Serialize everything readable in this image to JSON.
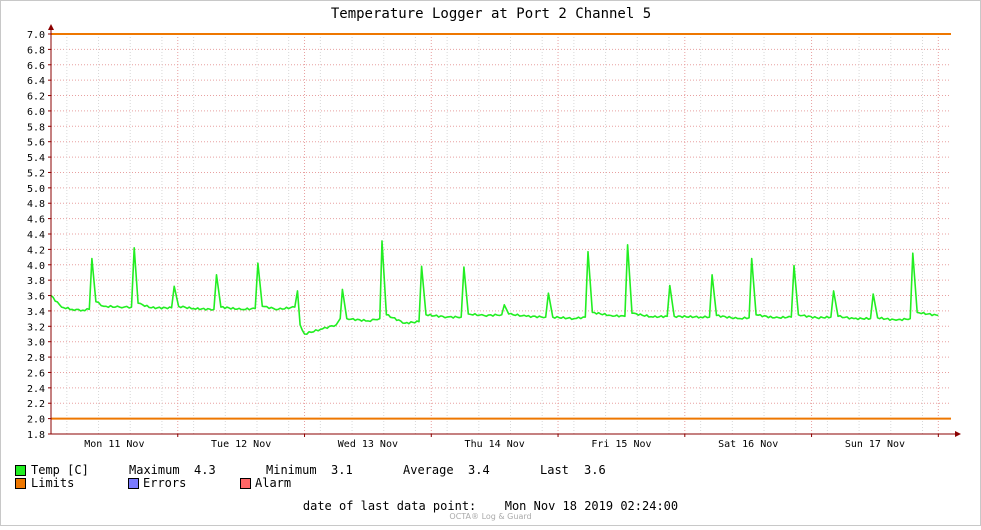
{
  "colors": {
    "temp": "#22ee22",
    "limits": "#ee7700",
    "errors": "#7b7bff",
    "alarm": "#ff6666",
    "grid_major": "#e8a0a0",
    "grid_minor": "#d8d8d8",
    "axis": "#8b0000"
  },
  "chart_data": {
    "type": "line",
    "title": "Temperature Logger at Port 2 Channel 5",
    "xlabel": "",
    "ylabel": "",
    "ylim": [
      1.8,
      7.0
    ],
    "y_ticks": [
      "7.0",
      "6.8",
      "6.6",
      "6.4",
      "6.2",
      "6.0",
      "5.8",
      "5.6",
      "5.4",
      "5.2",
      "5.0",
      "4.8",
      "4.6",
      "4.4",
      "4.2",
      "4.0",
      "3.8",
      "3.6",
      "3.4",
      "3.2",
      "3.0",
      "2.8",
      "2.6",
      "2.4",
      "2.2",
      "2.0",
      "1.8"
    ],
    "x_range_days": [
      "Mon 11 Nov 00:00",
      "Mon 18 Nov 02:24"
    ],
    "x_labels": [
      "Mon 11 Nov",
      "Tue 12 Nov",
      "Wed 13 Nov",
      "Thu 14 Nov",
      "Fri 15 Nov",
      "Sat 16 Nov",
      "Sun 17 Nov"
    ],
    "grid": true,
    "series": [
      {
        "name": "Temp [C]",
        "type": "line",
        "points": [
          [
            "Mon 11 Nov 00:00",
            3.6
          ],
          [
            "Mon 11 Nov 02:00",
            3.45
          ],
          [
            "Mon 11 Nov 04:00",
            3.42
          ],
          [
            "Mon 11 Nov 06:00",
            3.41
          ],
          [
            "Mon 11 Nov 07:15",
            3.42
          ],
          [
            "Mon 11 Nov 07:45",
            4.08
          ],
          [
            "Mon 11 Nov 08:30",
            3.52
          ],
          [
            "Mon 11 Nov 10:00",
            3.46
          ],
          [
            "Mon 11 Nov 13:00",
            3.45
          ],
          [
            "Mon 11 Nov 15:15",
            3.45
          ],
          [
            "Mon 11 Nov 15:45",
            4.22
          ],
          [
            "Mon 11 Nov 16:30",
            3.5
          ],
          [
            "Mon 11 Nov 19:00",
            3.44
          ],
          [
            "Mon 11 Nov 22:50",
            3.44
          ],
          [
            "Mon 11 Nov 23:20",
            3.72
          ],
          [
            "Tue 12 Nov 00:10",
            3.46
          ],
          [
            "Tue 12 Nov 03:00",
            3.43
          ],
          [
            "Tue 12 Nov 06:50",
            3.42
          ],
          [
            "Tue 12 Nov 07:20",
            3.87
          ],
          [
            "Tue 12 Nov 08:10",
            3.45
          ],
          [
            "Tue 12 Nov 12:00",
            3.42
          ],
          [
            "Tue 12 Nov 14:40",
            3.43
          ],
          [
            "Tue 12 Nov 15:10",
            4.02
          ],
          [
            "Tue 12 Nov 16:00",
            3.46
          ],
          [
            "Tue 12 Nov 19:00",
            3.42
          ],
          [
            "Tue 12 Nov 22:10",
            3.45
          ],
          [
            "Tue 12 Nov 22:40",
            3.66
          ],
          [
            "Tue 12 Nov 23:10",
            3.22
          ],
          [
            "Wed 13 Nov 00:00",
            3.1
          ],
          [
            "Wed 13 Nov 03:00",
            3.16
          ],
          [
            "Wed 13 Nov 06:00",
            3.22
          ],
          [
            "Wed 13 Nov 06:45",
            3.3
          ],
          [
            "Wed 13 Nov 07:10",
            3.68
          ],
          [
            "Wed 13 Nov 08:00",
            3.3
          ],
          [
            "Wed 13 Nov 12:00",
            3.27
          ],
          [
            "Wed 13 Nov 14:15",
            3.3
          ],
          [
            "Wed 13 Nov 14:40",
            4.31
          ],
          [
            "Wed 13 Nov 15:30",
            3.35
          ],
          [
            "Wed 13 Nov 19:00",
            3.24
          ],
          [
            "Wed 13 Nov 21:40",
            3.26
          ],
          [
            "Wed 13 Nov 22:10",
            3.98
          ],
          [
            "Wed 13 Nov 23:00",
            3.35
          ],
          [
            "Thu 14 Nov 03:00",
            3.32
          ],
          [
            "Thu 14 Nov 05:40",
            3.32
          ],
          [
            "Thu 14 Nov 06:10",
            3.97
          ],
          [
            "Thu 14 Nov 07:00",
            3.36
          ],
          [
            "Thu 14 Nov 10:00",
            3.34
          ],
          [
            "Thu 14 Nov 13:20",
            3.35
          ],
          [
            "Thu 14 Nov 13:50",
            3.48
          ],
          [
            "Thu 14 Nov 14:40",
            3.36
          ],
          [
            "Thu 14 Nov 18:00",
            3.33
          ],
          [
            "Thu 14 Nov 21:40",
            3.32
          ],
          [
            "Thu 14 Nov 22:10",
            3.63
          ],
          [
            "Thu 14 Nov 23:00",
            3.32
          ],
          [
            "Fri 15 Nov 03:00",
            3.3
          ],
          [
            "Fri 15 Nov 05:10",
            3.32
          ],
          [
            "Fri 15 Nov 05:40",
            4.17
          ],
          [
            "Fri 15 Nov 06:30",
            3.38
          ],
          [
            "Fri 15 Nov 10:00",
            3.34
          ],
          [
            "Fri 15 Nov 12:40",
            3.33
          ],
          [
            "Fri 15 Nov 13:10",
            4.26
          ],
          [
            "Fri 15 Nov 14:00",
            3.37
          ],
          [
            "Fri 15 Nov 18:00",
            3.32
          ],
          [
            "Fri 15 Nov 20:40",
            3.33
          ],
          [
            "Fri 15 Nov 21:10",
            3.73
          ],
          [
            "Fri 15 Nov 22:00",
            3.33
          ],
          [
            "Sat 16 Nov 03:00",
            3.32
          ],
          [
            "Sat 16 Nov 04:40",
            3.32
          ],
          [
            "Sat 16 Nov 05:10",
            3.87
          ],
          [
            "Sat 16 Nov 06:00",
            3.34
          ],
          [
            "Sat 16 Nov 10:00",
            3.3
          ],
          [
            "Sat 16 Nov 12:10",
            3.31
          ],
          [
            "Sat 16 Nov 12:40",
            4.08
          ],
          [
            "Sat 16 Nov 13:30",
            3.35
          ],
          [
            "Sat 16 Nov 17:00",
            3.31
          ],
          [
            "Sat 16 Nov 20:10",
            3.32
          ],
          [
            "Sat 16 Nov 20:40",
            3.99
          ],
          [
            "Sat 16 Nov 21:30",
            3.35
          ],
          [
            "Sun 17 Nov 01:00",
            3.31
          ],
          [
            "Sun 17 Nov 03:40",
            3.32
          ],
          [
            "Sun 17 Nov 04:10",
            3.66
          ],
          [
            "Sun 17 Nov 05:00",
            3.33
          ],
          [
            "Sun 17 Nov 08:00",
            3.3
          ],
          [
            "Sun 17 Nov 11:10",
            3.3
          ],
          [
            "Sun 17 Nov 11:40",
            3.62
          ],
          [
            "Sun 17 Nov 12:30",
            3.31
          ],
          [
            "Sun 17 Nov 16:00",
            3.28
          ],
          [
            "Sun 17 Nov 18:40",
            3.3
          ],
          [
            "Sun 17 Nov 19:10",
            4.15
          ],
          [
            "Sun 17 Nov 20:00",
            3.38
          ],
          [
            "Mon 18 Nov 00:00",
            3.34
          ]
        ]
      },
      {
        "name": "Limits",
        "type": "line",
        "points": [
          [
            "Mon 11 Nov 00:00",
            7.0
          ],
          [
            "Mon 18 Nov 02:24",
            7.0
          ]
        ]
      },
      {
        "name": "Limits (lower)",
        "type": "line",
        "points": [
          [
            "Mon 11 Nov 00:00",
            2.0
          ],
          [
            "Mon 18 Nov 02:24",
            2.0
          ]
        ]
      }
    ]
  },
  "legend": {
    "temp_label": "Temp [C]",
    "max_label": "Maximum",
    "max_value": "4.3",
    "min_label": "Minimum",
    "min_value": "3.1",
    "avg_label": "Average",
    "avg_value": "3.4",
    "last_label": "Last",
    "last_value": "3.6",
    "limits_label": "Limits",
    "errors_label": "Errors",
    "alarm_label": "Alarm"
  },
  "footer": {
    "last_point_label": "date of last data point:",
    "last_point_value": "Mon Nov 18 2019 02:24:00",
    "brand": "OCTA® Log & Guard"
  }
}
